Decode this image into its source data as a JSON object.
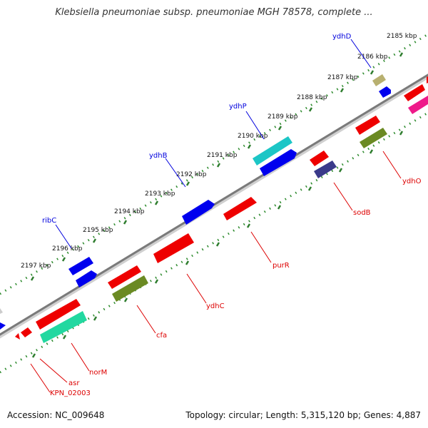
{
  "title": "Klebsiella pneumoniae subsp. pneumoniae MGH 78578, complete ...",
  "footer": {
    "accession": "Accession: NC_009648",
    "info": "Topology: circular; Length: 5,315,120 bp; Genes: 4,887"
  },
  "kbp_ticks": [
    "2185 kbp",
    "2186 kbp",
    "2187 kbp",
    "2188 kbp",
    "2189 kbp",
    "2190 kbp",
    "2191 kbp",
    "2192 kbp",
    "2193 kbp",
    "2194 kbp",
    "2195 kbp",
    "2196 kbp",
    "2197 kbp"
  ],
  "genes_top": [
    {
      "label": "ydhD",
      "color": "#0000dd"
    },
    {
      "label": "ydhP",
      "color": "#0000dd"
    },
    {
      "label": "ydhB",
      "color": "#0000dd"
    },
    {
      "label": "ribC",
      "color": "#0000dd"
    }
  ],
  "genes_bottom": [
    {
      "label": "ydhO",
      "color": "#dd0000"
    },
    {
      "label": "sodB",
      "color": "#dd0000"
    },
    {
      "label": "purR",
      "color": "#dd0000"
    },
    {
      "label": "ydhC",
      "color": "#dd0000"
    },
    {
      "label": "cfa",
      "color": "#dd0000"
    },
    {
      "label": "norM",
      "color": "#dd0000"
    },
    {
      "label": "asr",
      "color": "#dd0000"
    },
    {
      "label": "KPN_02003",
      "color": "#dd0000"
    }
  ],
  "colors": {
    "backbone": "#8a8a8a",
    "tick": "#2e8b2e",
    "forward_gene": "#0000ee",
    "reverse_gene": "#ee0000",
    "cyan_gene": "#1cc6c6",
    "olive_gene": "#6b8a23",
    "mint_gene": "#22d8a0",
    "navy_gene": "#3a3a8a",
    "khaki_gene": "#b8b070",
    "pink_gene": "#ee1a8a"
  }
}
